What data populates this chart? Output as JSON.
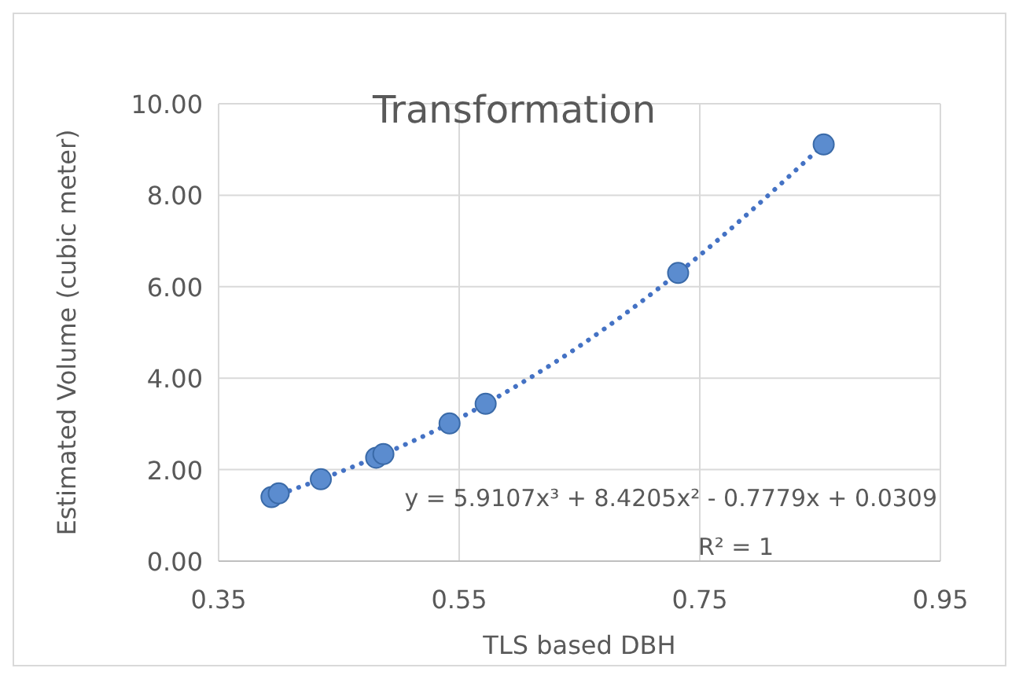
{
  "chart_data": {
    "type": "scatter",
    "title": "Transformation",
    "xlabel": "TLS based DBH",
    "ylabel": "Estimated Volume (cubic meter)",
    "xlim": [
      0.35,
      0.95
    ],
    "xticks": [
      0.35,
      0.55,
      0.75,
      0.95
    ],
    "ylim": [
      0,
      10
    ],
    "yticks": [
      {
        "value": 0,
        "label": "0.00"
      },
      {
        "value": 2,
        "label": "2.00"
      },
      {
        "value": 4,
        "label": "4.00"
      },
      {
        "value": 6,
        "label": "6.00"
      },
      {
        "value": 8,
        "label": "8.00"
      },
      {
        "value": 10,
        "label": "10.00"
      }
    ],
    "grid": true,
    "series": [
      {
        "color": "#5b8ccf",
        "marker": "circle",
        "x": [
          0.394,
          0.4,
          0.435,
          0.481,
          0.487,
          0.542,
          0.572,
          0.732,
          0.853
        ],
        "values": [
          1.4,
          1.48,
          1.79,
          2.26,
          2.34,
          3.01,
          3.44,
          6.3,
          9.11
        ]
      },
      {
        "type": "line",
        "color": "#4472c4",
        "line_style": "dotted",
        "marker": "none",
        "x": [
          0.394,
          0.435,
          0.487,
          0.542,
          0.572,
          0.65,
          0.732,
          0.853
        ],
        "values": [
          1.4,
          1.79,
          2.34,
          3.01,
          3.44,
          4.7,
          6.3,
          9.11
        ]
      }
    ],
    "annotations": [
      "y = 5.9107x³ + 8.4205x² - 0.7779x + 0.0309",
      "R² = 1"
    ]
  }
}
